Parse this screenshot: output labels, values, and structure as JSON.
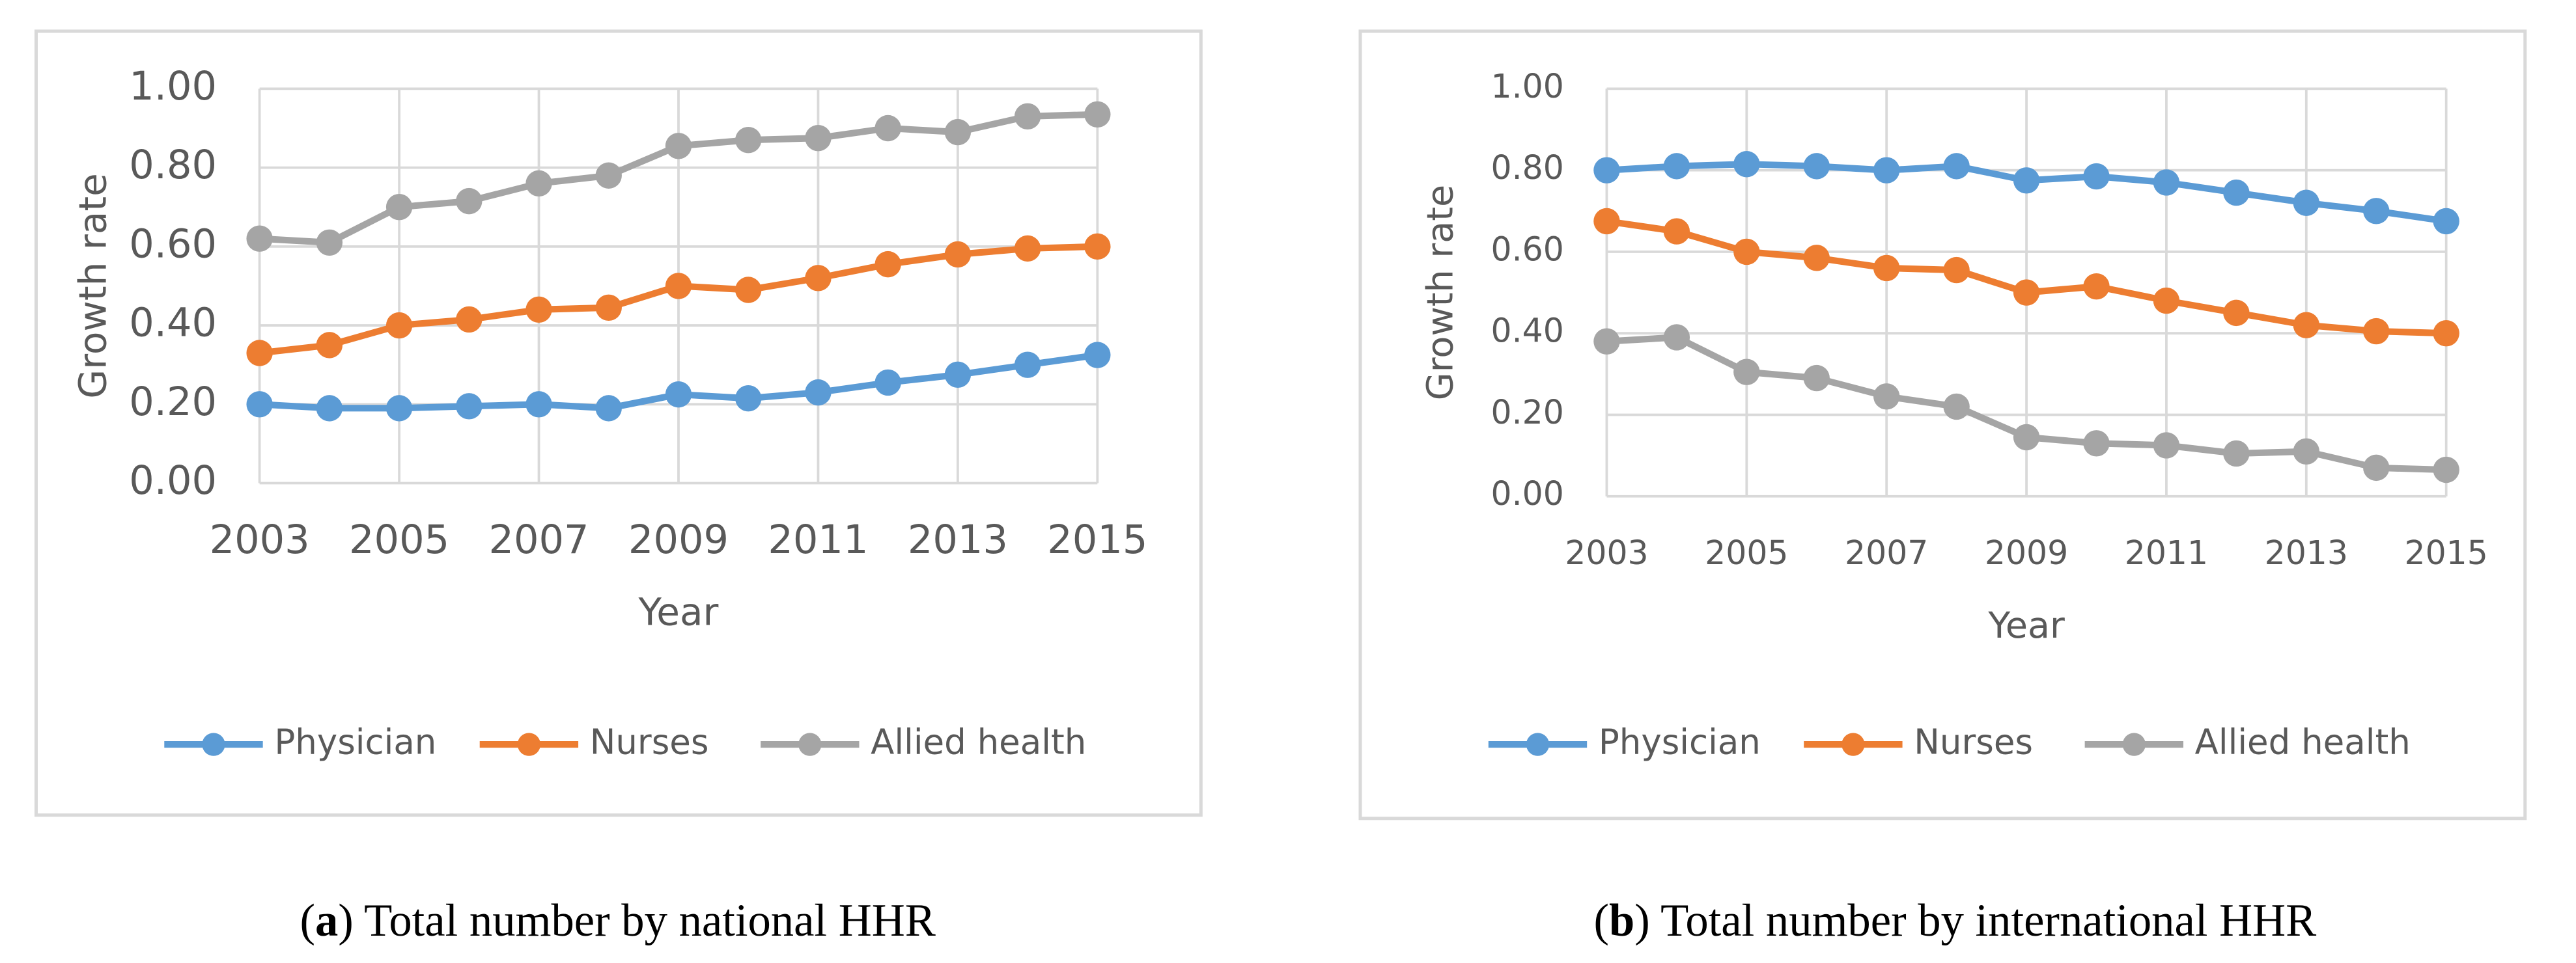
{
  "chart_data": [
    {
      "type": "line",
      "y_label": "Growth rate",
      "x_label": "Year",
      "caption": [
        "(",
        "a",
        ") Total number by national HHR"
      ],
      "x": [
        2003,
        2004,
        2005,
        2006,
        2007,
        2008,
        2009,
        2010,
        2011,
        2012,
        2013,
        2014,
        2015
      ],
      "xlim": [
        2003,
        2015
      ],
      "xticks": [
        2003,
        2005,
        2007,
        2009,
        2011,
        2013,
        2015
      ],
      "ylim": [
        0,
        1
      ],
      "yticks": [
        {
          "value": 0,
          "label": "0.00"
        },
        {
          "value": 0.2,
          "label": "0.20"
        },
        {
          "value": 0.4,
          "label": "0.40"
        },
        {
          "value": 0.6,
          "label": "0.60"
        },
        {
          "value": 0.8,
          "label": "0.80"
        },
        {
          "value": 1,
          "label": "1.00"
        }
      ],
      "grid": true,
      "legend": "bottom",
      "series": [
        {
          "name": "Physician",
          "color": "#5b9bd5",
          "values": [
            0.2,
            0.19,
            0.19,
            0.195,
            0.2,
            0.19,
            0.225,
            0.215,
            0.23,
            0.255,
            0.275,
            0.3,
            0.325
          ]
        },
        {
          "name": "Nurses",
          "color": "#ed7d31",
          "values": [
            0.33,
            0.35,
            0.4,
            0.415,
            0.44,
            0.445,
            0.5,
            0.49,
            0.52,
            0.555,
            0.58,
            0.595,
            0.6
          ]
        },
        {
          "name": "Allied health",
          "color": "#a5a5a5",
          "values": [
            0.62,
            0.61,
            0.7,
            0.715,
            0.76,
            0.78,
            0.855,
            0.87,
            0.875,
            0.9,
            0.89,
            0.93,
            0.935
          ]
        }
      ]
    },
    {
      "type": "line",
      "y_label": "Growth rate",
      "x_label": "Year",
      "caption": [
        "(",
        "b",
        ") Total number by international HHR"
      ],
      "x": [
        2003,
        2004,
        2005,
        2006,
        2007,
        2008,
        2009,
        2010,
        2011,
        2012,
        2013,
        2014,
        2015
      ],
      "xlim": [
        2003,
        2015
      ],
      "xticks": [
        2003,
        2005,
        2007,
        2009,
        2011,
        2013,
        2015
      ],
      "ylim": [
        0,
        1
      ],
      "yticks": [
        {
          "value": 0,
          "label": "0.00"
        },
        {
          "value": 0.2,
          "label": "0.20"
        },
        {
          "value": 0.4,
          "label": "0.40"
        },
        {
          "value": 0.6,
          "label": "0.60"
        },
        {
          "value": 0.8,
          "label": "0.80"
        },
        {
          "value": 1,
          "label": "1.00"
        }
      ],
      "grid": true,
      "legend": "bottom",
      "series": [
        {
          "name": "Physician",
          "color": "#5b9bd5",
          "values": [
            0.8,
            0.81,
            0.815,
            0.81,
            0.8,
            0.81,
            0.775,
            0.785,
            0.77,
            0.745,
            0.72,
            0.7,
            0.675
          ]
        },
        {
          "name": "Nurses",
          "color": "#ed7d31",
          "values": [
            0.675,
            0.65,
            0.6,
            0.585,
            0.56,
            0.555,
            0.5,
            0.515,
            0.48,
            0.45,
            0.42,
            0.405,
            0.4
          ]
        },
        {
          "name": "Allied health",
          "color": "#a5a5a5",
          "values": [
            0.38,
            0.39,
            0.305,
            0.29,
            0.245,
            0.22,
            0.145,
            0.13,
            0.125,
            0.105,
            0.11,
            0.07,
            0.065
          ]
        }
      ]
    }
  ]
}
